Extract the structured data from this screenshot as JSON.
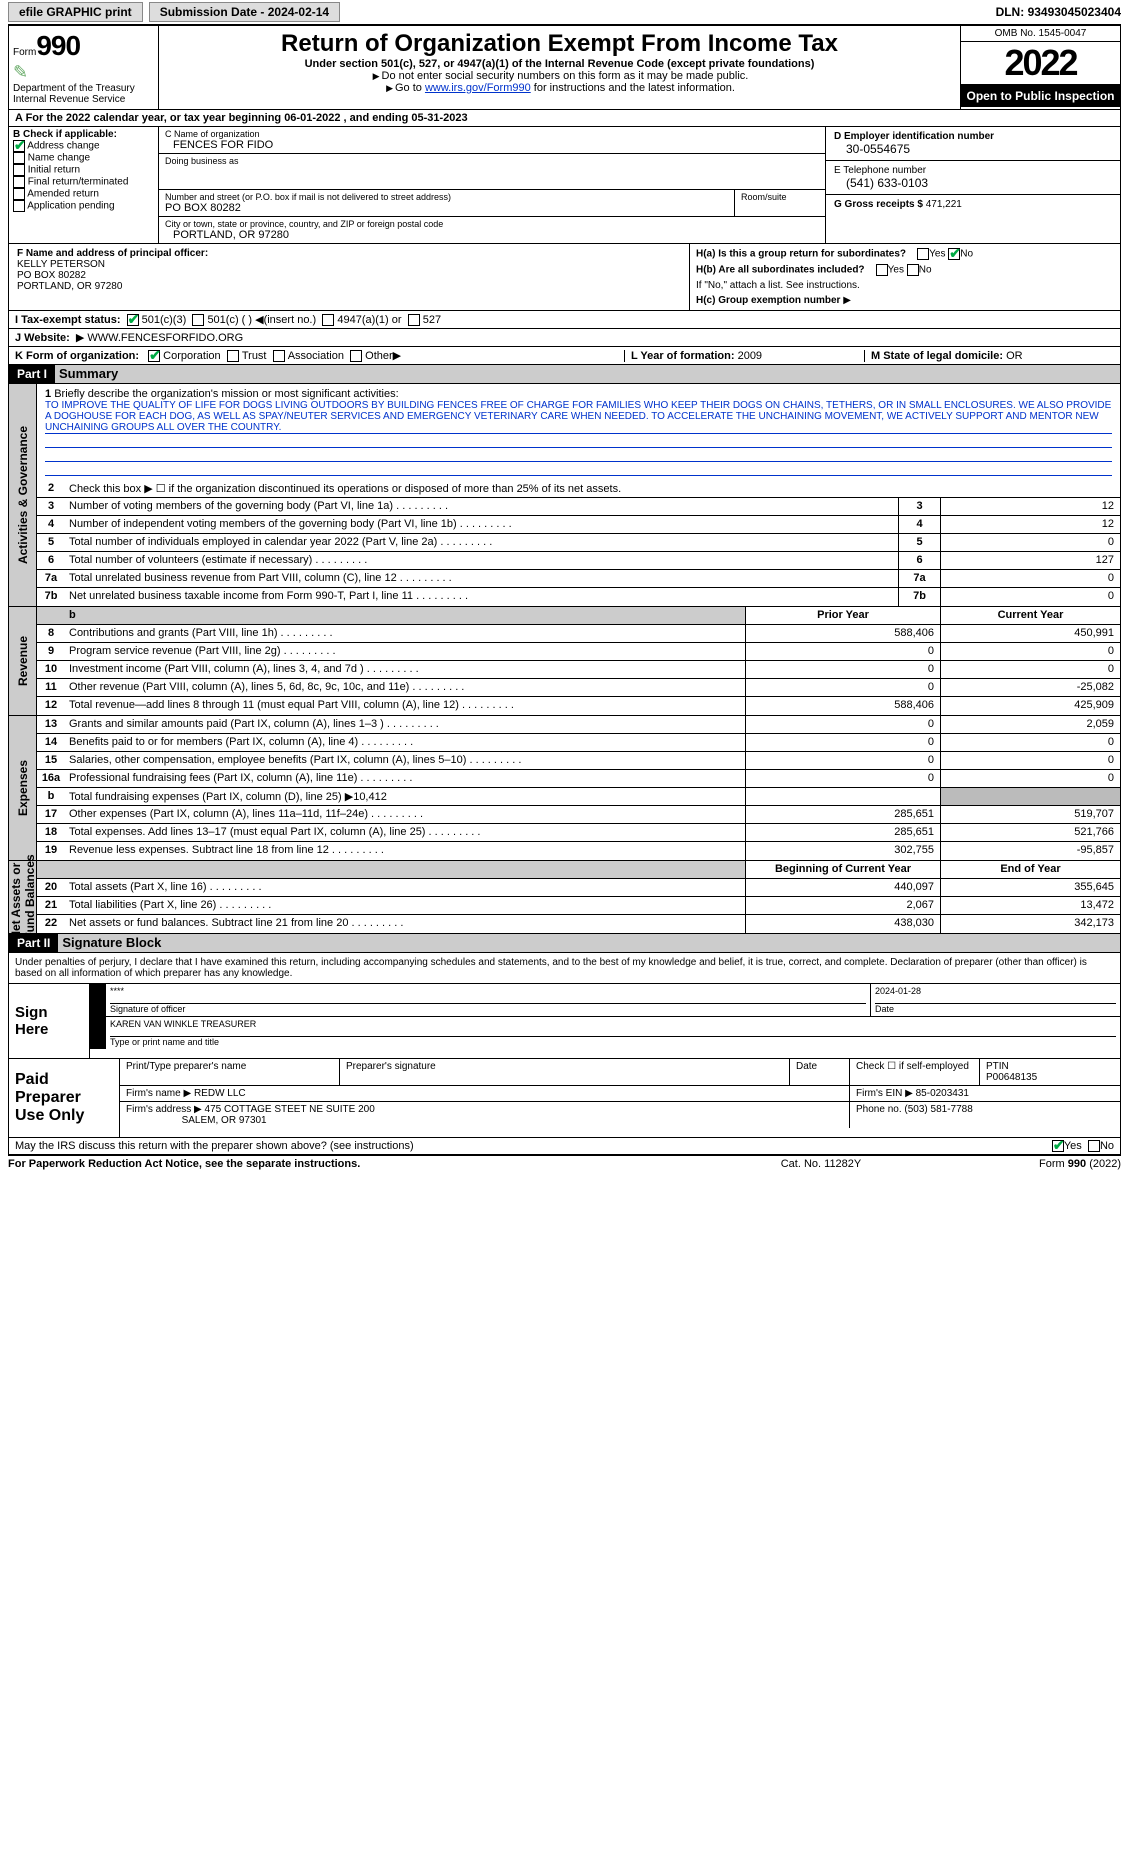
{
  "colors": {
    "link": "#0033cc",
    "check": "#00aa44",
    "shade": "#cccccc",
    "darkshade": "#bbbbbb"
  },
  "topbar": {
    "efile": "efile GRAPHIC print",
    "subdate_label": "Submission Date - ",
    "subdate": "2024-02-14",
    "dln_label": "DLN: ",
    "dln": "93493045023404"
  },
  "header": {
    "form_word": "Form",
    "form_num": "990",
    "dept": "Department of the Treasury",
    "irs": "Internal Revenue Service",
    "title": "Return of Organization Exempt From Income Tax",
    "sub": "Under section 501(c), 527, or 4947(a)(1) of the Internal Revenue Code (except private foundations)",
    "note1": "Do not enter social security numbers on this form as it may be made public.",
    "note2_pre": "Go to ",
    "note2_link": "www.irs.gov/Form990",
    "note2_post": " for instructions and the latest information.",
    "omb": "OMB No. 1545-0047",
    "year": "2022",
    "open": "Open to Public Inspection"
  },
  "row_a": {
    "text": "A  For the 2022 calendar year, or tax year beginning 06-01-2022     , and ending 05-31-2023"
  },
  "b": {
    "head": "B Check if applicable:",
    "items": [
      "Address change",
      "Name change",
      "Initial return",
      "Final return/terminated",
      "Amended return",
      "Application pending"
    ],
    "checked": [
      true,
      false,
      false,
      false,
      false,
      false
    ]
  },
  "c": {
    "name_label": "C Name of organization",
    "name": "FENCES FOR FIDO",
    "dba_label": "Doing business as",
    "dba": "",
    "addr_label": "Number and street (or P.O. box if mail is not delivered to street address)",
    "addr": "PO BOX 80282",
    "room_label": "Room/suite",
    "room": "",
    "city_label": "City or town, state or province, country, and ZIP or foreign postal code",
    "city": "PORTLAND, OR  97280"
  },
  "d": {
    "label": "D Employer identification number",
    "val": "30-0554675"
  },
  "e": {
    "label": "E Telephone number",
    "val": "(541) 633-0103"
  },
  "g": {
    "label": "G Gross receipts $",
    "val": "471,221"
  },
  "f": {
    "label": "F  Name and address of principal officer:",
    "name": "KELLY PETERSON",
    "addr1": "PO BOX 80282",
    "addr2": "PORTLAND, OR  97280"
  },
  "h": {
    "a_label": "H(a)  Is this a group return for subordinates?",
    "a_yes": "Yes",
    "a_no": "No",
    "a_checked": "No",
    "b_label": "H(b)  Are all subordinates included?",
    "b_yes": "Yes",
    "b_no": "No",
    "b_note": "If \"No,\" attach a list. See instructions.",
    "c_label": "H(c)  Group exemption number",
    "c_val": ""
  },
  "i": {
    "label": "I   Tax-exempt status:",
    "opts": [
      "501(c)(3)",
      "501(c) (  )",
      "(insert no.)",
      "4947(a)(1) or",
      "527"
    ],
    "checked": 0
  },
  "j": {
    "label": "J   Website:",
    "val": "WWW.FENCESFORFIDO.ORG"
  },
  "k": {
    "label": "K Form of organization:",
    "opts": [
      "Corporation",
      "Trust",
      "Association",
      "Other"
    ],
    "checked": 0
  },
  "l": {
    "label": "L Year of formation:",
    "val": "2009"
  },
  "m": {
    "label": "M State of legal domicile:",
    "val": "OR"
  },
  "part1": {
    "head": "Part I",
    "title": "Summary"
  },
  "mission": {
    "num": "1",
    "label": "Briefly describe the organization's mission or most significant activities:",
    "text": "TO IMPROVE THE QUALITY OF LIFE FOR DOGS LIVING OUTDOORS BY BUILDING FENCES FREE OF CHARGE FOR FAMILIES WHO KEEP THEIR DOGS ON CHAINS, TETHERS, OR IN SMALL ENCLOSURES. WE ALSO PROVIDE A DOGHOUSE FOR EACH DOG, AS WELL AS SPAY/NEUTER SERVICES AND EMERGENCY VETERINARY CARE WHEN NEEDED. TO ACCELERATE THE UNCHAINING MOVEMENT, WE ACTIVELY SUPPORT AND MENTOR NEW UNCHAINING GROUPS ALL OVER THE COUNTRY."
  },
  "gov": {
    "row2": "Check this box ▶ ☐  if the organization discontinued its operations or disposed of more than 25% of its net assets.",
    "rows": [
      {
        "n": "3",
        "t": "Number of voting members of the governing body (Part VI, line 1a)",
        "c": "3",
        "v": "12"
      },
      {
        "n": "4",
        "t": "Number of independent voting members of the governing body (Part VI, line 1b)",
        "c": "4",
        "v": "12"
      },
      {
        "n": "5",
        "t": "Total number of individuals employed in calendar year 2022 (Part V, line 2a)",
        "c": "5",
        "v": "0"
      },
      {
        "n": "6",
        "t": "Total number of volunteers (estimate if necessary)",
        "c": "6",
        "v": "127"
      },
      {
        "n": "7a",
        "t": "Total unrelated business revenue from Part VIII, column (C), line 12",
        "c": "7a",
        "v": "0"
      },
      {
        "n": "7b",
        "t": "Net unrelated business taxable income from Form 990-T, Part I, line 11",
        "c": "7b",
        "v": "0"
      }
    ]
  },
  "rev": {
    "head_b": "b",
    "head_prior": "Prior Year",
    "head_curr": "Current Year",
    "rows": [
      {
        "n": "8",
        "t": "Contributions and grants (Part VIII, line 1h)",
        "p": "588,406",
        "c": "450,991"
      },
      {
        "n": "9",
        "t": "Program service revenue (Part VIII, line 2g)",
        "p": "0",
        "c": "0"
      },
      {
        "n": "10",
        "t": "Investment income (Part VIII, column (A), lines 3, 4, and 7d )",
        "p": "0",
        "c": "0"
      },
      {
        "n": "11",
        "t": "Other revenue (Part VIII, column (A), lines 5, 6d, 8c, 9c, 10c, and 11e)",
        "p": "0",
        "c": "-25,082"
      },
      {
        "n": "12",
        "t": "Total revenue—add lines 8 through 11 (must equal Part VIII, column (A), line 12)",
        "p": "588,406",
        "c": "425,909"
      }
    ]
  },
  "exp": {
    "rows": [
      {
        "n": "13",
        "t": "Grants and similar amounts paid (Part IX, column (A), lines 1–3 )",
        "p": "0",
        "c": "2,059"
      },
      {
        "n": "14",
        "t": "Benefits paid to or for members (Part IX, column (A), line 4)",
        "p": "0",
        "c": "0"
      },
      {
        "n": "15",
        "t": "Salaries, other compensation, employee benefits (Part IX, column (A), lines 5–10)",
        "p": "0",
        "c": "0"
      },
      {
        "n": "16a",
        "t": "Professional fundraising fees (Part IX, column (A), line 11e)",
        "p": "0",
        "c": "0"
      },
      {
        "n": "b",
        "t": "Total fundraising expenses (Part IX, column (D), line 25) ▶10,412",
        "p": "",
        "c": "",
        "shaded": true
      },
      {
        "n": "17",
        "t": "Other expenses (Part IX, column (A), lines 11a–11d, 11f–24e)",
        "p": "285,651",
        "c": "519,707"
      },
      {
        "n": "18",
        "t": "Total expenses. Add lines 13–17 (must equal Part IX, column (A), line 25)",
        "p": "285,651",
        "c": "521,766"
      },
      {
        "n": "19",
        "t": "Revenue less expenses. Subtract line 18 from line 12",
        "p": "302,755",
        "c": "-95,857"
      }
    ]
  },
  "net": {
    "head_prior": "Beginning of Current Year",
    "head_curr": "End of Year",
    "rows": [
      {
        "n": "20",
        "t": "Total assets (Part X, line 16)",
        "p": "440,097",
        "c": "355,645"
      },
      {
        "n": "21",
        "t": "Total liabilities (Part X, line 26)",
        "p": "2,067",
        "c": "13,472"
      },
      {
        "n": "22",
        "t": "Net assets or fund balances. Subtract line 21 from line 20",
        "p": "438,030",
        "c": "342,173"
      }
    ]
  },
  "part2": {
    "head": "Part II",
    "title": "Signature Block"
  },
  "perjury": "Under penalties of perjury, I declare that I have examined this return, including accompanying schedules and statements, and to the best of my knowledge and belief, it is true, correct, and complete. Declaration of preparer (other than officer) is based on all information of which preparer has any knowledge.",
  "sign": {
    "lab": "Sign Here",
    "sig_label": "Signature of officer",
    "date_label": "Date",
    "date": "2024-01-28",
    "name_label": "Type or print name and title",
    "name": "KAREN VAN WINKLE  TREASURER"
  },
  "prep": {
    "lab": "Paid Preparer Use Only",
    "h_name": "Print/Type preparer's name",
    "h_sig": "Preparer's signature",
    "h_date": "Date",
    "h_check": "Check ☐ if self-employed",
    "h_ptin": "PTIN",
    "ptin": "P00648135",
    "firm_name_l": "Firm's name   ▶",
    "firm_name": "REDW LLC",
    "firm_ein_l": "Firm's EIN ▶",
    "firm_ein": "85-0203431",
    "firm_addr_l": "Firm's address ▶",
    "firm_addr": "475 COTTAGE STEET NE SUITE 200",
    "firm_addr2": "SALEM, OR  97301",
    "phone_l": "Phone no.",
    "phone": "(503) 581-7788"
  },
  "disclose": {
    "q": "May the IRS discuss this return with the preparer shown above? (see instructions)",
    "yes": "Yes",
    "no": "No",
    "checked": "Yes"
  },
  "footer": {
    "l": "For Paperwork Reduction Act Notice, see the separate instructions.",
    "c": "Cat. No. 11282Y",
    "r": "Form 990 (2022)"
  }
}
